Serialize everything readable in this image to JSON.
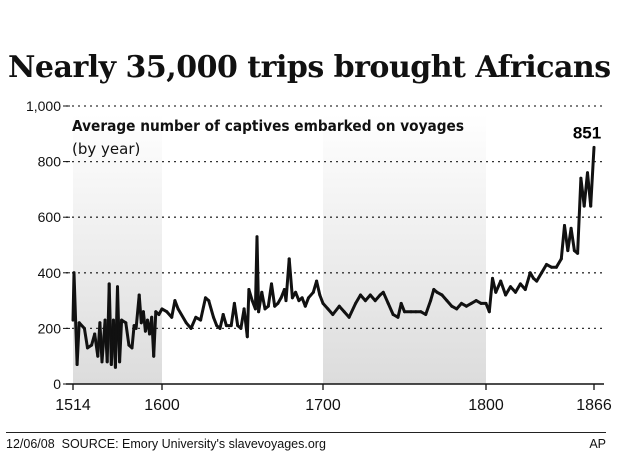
{
  "title": "Nearly 35,000 trips brought Africans",
  "chart_data": {
    "type": "line",
    "subtitle": "Average number of captives embarked on voyages",
    "subtitle2": "(by year)",
    "xlabel": "",
    "ylabel": "",
    "ylim": [
      0,
      1000
    ],
    "yticks": [
      0,
      200,
      400,
      600,
      800,
      1000
    ],
    "ytick_labels": [
      "0",
      "200",
      "400",
      "600",
      "800",
      "1,000"
    ],
    "xticks": [
      1514,
      1600,
      1700,
      1800,
      1866
    ],
    "xtick_labels": [
      "1514",
      "1600",
      "1700",
      "1800",
      "1866"
    ],
    "grid": "horizontal dotted",
    "shaded_ranges": [
      [
        1514,
        1600
      ],
      [
        1700,
        1800
      ]
    ],
    "annotation": {
      "x": 1866,
      "y": 851,
      "label": "851"
    },
    "line_color": "#111111",
    "shade_color": "#e6e6e6",
    "points": [
      [
        1514,
        230
      ],
      [
        1515,
        400
      ],
      [
        1518,
        70
      ],
      [
        1520,
        220
      ],
      [
        1525,
        200
      ],
      [
        1528,
        130
      ],
      [
        1532,
        140
      ],
      [
        1535,
        180
      ],
      [
        1538,
        100
      ],
      [
        1540,
        220
      ],
      [
        1542,
        80
      ],
      [
        1545,
        230
      ],
      [
        1547,
        80
      ],
      [
        1549,
        360
      ],
      [
        1551,
        70
      ],
      [
        1553,
        230
      ],
      [
        1555,
        60
      ],
      [
        1557,
        350
      ],
      [
        1559,
        80
      ],
      [
        1561,
        230
      ],
      [
        1565,
        220
      ],
      [
        1568,
        140
      ],
      [
        1571,
        130
      ],
      [
        1573,
        210
      ],
      [
        1575,
        200
      ],
      [
        1578,
        320
      ],
      [
        1580,
        220
      ],
      [
        1582,
        260
      ],
      [
        1584,
        190
      ],
      [
        1586,
        230
      ],
      [
        1588,
        180
      ],
      [
        1590,
        240
      ],
      [
        1592,
        100
      ],
      [
        1594,
        260
      ],
      [
        1597,
        250
      ],
      [
        1600,
        270
      ],
      [
        1603,
        260
      ],
      [
        1606,
        240
      ],
      [
        1608,
        300
      ],
      [
        1610,
        270
      ],
      [
        1615,
        220
      ],
      [
        1618,
        200
      ],
      [
        1621,
        240
      ],
      [
        1624,
        230
      ],
      [
        1627,
        310
      ],
      [
        1629,
        300
      ],
      [
        1632,
        240
      ],
      [
        1634,
        210
      ],
      [
        1636,
        200
      ],
      [
        1638,
        250
      ],
      [
        1640,
        210
      ],
      [
        1643,
        210
      ],
      [
        1645,
        290
      ],
      [
        1647,
        210
      ],
      [
        1649,
        200
      ],
      [
        1651,
        270
      ],
      [
        1653,
        170
      ],
      [
        1654,
        340
      ],
      [
        1656,
        300
      ],
      [
        1658,
        270
      ],
      [
        1659,
        530
      ],
      [
        1660,
        260
      ],
      [
        1662,
        330
      ],
      [
        1664,
        270
      ],
      [
        1666,
        280
      ],
      [
        1668,
        360
      ],
      [
        1670,
        280
      ],
      [
        1672,
        290
      ],
      [
        1674,
        310
      ],
      [
        1676,
        340
      ],
      [
        1677,
        300
      ],
      [
        1679,
        450
      ],
      [
        1681,
        310
      ],
      [
        1683,
        330
      ],
      [
        1685,
        300
      ],
      [
        1687,
        310
      ],
      [
        1689,
        280
      ],
      [
        1691,
        310
      ],
      [
        1694,
        330
      ],
      [
        1696,
        370
      ],
      [
        1698,
        320
      ],
      [
        1700,
        290
      ],
      [
        1703,
        270
      ],
      [
        1706,
        250
      ],
      [
        1710,
        280
      ],
      [
        1713,
        260
      ],
      [
        1716,
        240
      ],
      [
        1720,
        290
      ],
      [
        1723,
        320
      ],
      [
        1726,
        300
      ],
      [
        1729,
        320
      ],
      [
        1732,
        300
      ],
      [
        1735,
        320
      ],
      [
        1737,
        330
      ],
      [
        1740,
        290
      ],
      [
        1743,
        250
      ],
      [
        1746,
        240
      ],
      [
        1748,
        290
      ],
      [
        1750,
        260
      ],
      [
        1754,
        260
      ],
      [
        1757,
        260
      ],
      [
        1760,
        260
      ],
      [
        1763,
        250
      ],
      [
        1766,
        300
      ],
      [
        1768,
        340
      ],
      [
        1770,
        330
      ],
      [
        1773,
        320
      ],
      [
        1776,
        300
      ],
      [
        1779,
        280
      ],
      [
        1782,
        270
      ],
      [
        1785,
        290
      ],
      [
        1788,
        280
      ],
      [
        1791,
        290
      ],
      [
        1794,
        300
      ],
      [
        1797,
        290
      ],
      [
        1800,
        290
      ],
      [
        1802,
        260
      ],
      [
        1804,
        380
      ],
      [
        1806,
        330
      ],
      [
        1809,
        370
      ],
      [
        1812,
        320
      ],
      [
        1815,
        350
      ],
      [
        1818,
        330
      ],
      [
        1821,
        360
      ],
      [
        1824,
        340
      ],
      [
        1827,
        400
      ],
      [
        1829,
        380
      ],
      [
        1831,
        370
      ],
      [
        1834,
        400
      ],
      [
        1837,
        430
      ],
      [
        1840,
        420
      ],
      [
        1843,
        420
      ],
      [
        1846,
        450
      ],
      [
        1848,
        570
      ],
      [
        1850,
        480
      ],
      [
        1852,
        560
      ],
      [
        1854,
        480
      ],
      [
        1856,
        470
      ],
      [
        1858,
        740
      ],
      [
        1860,
        640
      ],
      [
        1862,
        760
      ],
      [
        1864,
        640
      ],
      [
        1866,
        851
      ]
    ]
  },
  "footer": {
    "date": "12/06/08",
    "source": "SOURCE: Emory University's slavevoyages.org",
    "credit": "AP"
  }
}
